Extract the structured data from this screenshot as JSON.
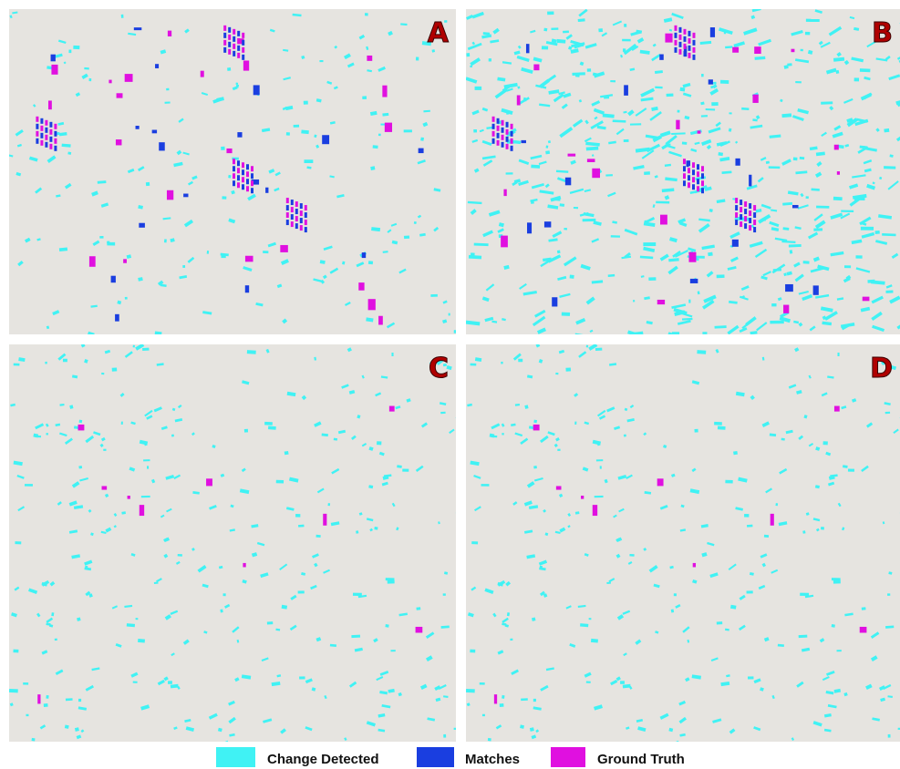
{
  "panels": [
    {
      "label": "A"
    },
    {
      "label": "B"
    },
    {
      "label": "C"
    },
    {
      "label": "D"
    }
  ],
  "legend": [
    {
      "label": "Change Detected",
      "color": "#40f2f4"
    },
    {
      "label": "Matches",
      "color": "#1a3ee0"
    },
    {
      "label": "Ground Truth",
      "color": "#e010e0"
    }
  ]
}
